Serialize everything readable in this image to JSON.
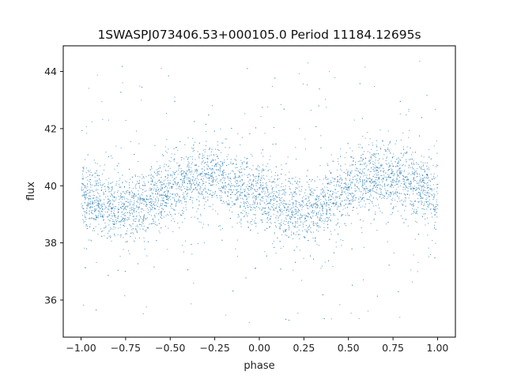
{
  "chart_data": {
    "type": "scatter",
    "title": "1SWASPJ073406.53+000105.0 Period 11184.12695s",
    "xlabel": "phase",
    "ylabel": "flux",
    "xlim": [
      -1.1,
      1.1
    ],
    "ylim": [
      34.7,
      44.9
    ],
    "x_ticks": [
      -1.0,
      -0.75,
      -0.5,
      -0.25,
      0.0,
      0.25,
      0.5,
      0.75,
      1.0
    ],
    "x_tick_labels": [
      "−1.00",
      "−0.75",
      "−0.50",
      "−0.25",
      "0.00",
      "0.25",
      "0.50",
      "0.75",
      "1.00"
    ],
    "y_ticks": [
      36,
      38,
      40,
      42,
      44
    ],
    "y_tick_labels": [
      "36",
      "38",
      "40",
      "42",
      "44"
    ],
    "grid": false,
    "legend": "none",
    "point_color": "#1f77b4",
    "series": [
      {
        "trend_phase": [
          -1.0,
          -0.9,
          -0.8,
          -0.75,
          -0.7,
          -0.6,
          -0.5,
          -0.4,
          -0.3,
          -0.25,
          -0.2,
          -0.1,
          0.0,
          0.1,
          0.2,
          0.25,
          0.3,
          0.4,
          0.5,
          0.6,
          0.7,
          0.75,
          0.8,
          0.9,
          1.0
        ],
        "trend_flux": [
          39.6,
          39.4,
          39.25,
          39.2,
          39.3,
          39.6,
          39.9,
          40.2,
          40.35,
          40.3,
          40.2,
          39.9,
          39.6,
          39.35,
          39.2,
          39.2,
          39.3,
          39.6,
          39.9,
          40.2,
          40.35,
          40.3,
          40.2,
          39.95,
          39.6
        ],
        "scatter_width": 0.55,
        "outlier_range": [
          35.2,
          44.4
        ]
      }
    ]
  }
}
